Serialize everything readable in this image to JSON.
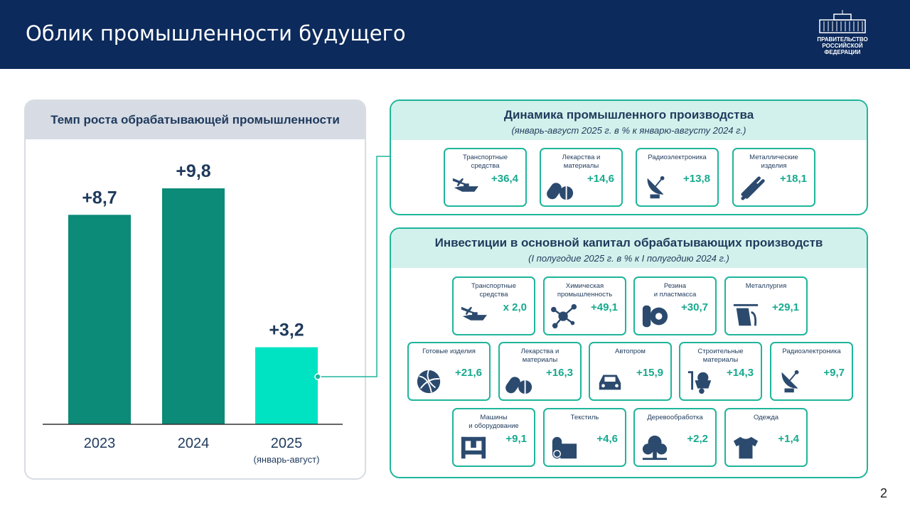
{
  "header": {
    "title": "Облик промышленности будущего",
    "logo_text": "ПРАВИТЕЛЬСТВО РОССИЙСКОЙ ФЕДЕРАЦИИ"
  },
  "left_panel": {
    "title": "Темп роста обрабатывающей промышленности"
  },
  "chart_data": {
    "type": "bar",
    "title": "Темп роста обрабатывающей промышленности",
    "categories": [
      "2023",
      "2024",
      "2025"
    ],
    "category_notes": [
      "",
      "",
      "(январь-август)"
    ],
    "values": [
      8.7,
      9.8,
      3.2
    ],
    "value_labels": [
      "+8,7",
      "+9,8",
      "+3,2"
    ],
    "colors": [
      "#0b8b78",
      "#0b8b78",
      "#00e3c3"
    ],
    "ylim": [
      0,
      10.5
    ]
  },
  "production": {
    "title": "Динамика промышленного производства",
    "subtitle": "(январь-август 2025 г. в % к январю-августу 2024 г.)",
    "items": [
      {
        "label": "Транспортные\nсредства",
        "value": "+36,4",
        "icon": "plane-ship-icon"
      },
      {
        "label": "Лекарства и\nматериалы",
        "value": "+14,6",
        "icon": "pills-icon"
      },
      {
        "label": "Радиоэлектроника",
        "value": "+13,8",
        "icon": "satellite-dish-icon"
      },
      {
        "label": "Металлические\nизделия",
        "value": "+18,1",
        "icon": "pipes-icon"
      }
    ]
  },
  "investment": {
    "title": "Инвестиции в основной капитал обрабатывающих производств",
    "subtitle": "(I полугодие 2025 г. в % к  I полугодию 2024 г.)",
    "items": [
      {
        "label": "Транспортные\nсредства",
        "value": "х 2,0",
        "icon": "plane-ship-icon"
      },
      {
        "label": "Химическая\nпромышленность",
        "value": "+49,1",
        "icon": "molecule-icon"
      },
      {
        "label": "Резина\nи пластмасса",
        "value": "+30,7",
        "icon": "tire-icon"
      },
      {
        "label": "Металлургия",
        "value": "+29,1",
        "icon": "ladle-icon"
      },
      {
        "label": "Готовые изделия",
        "value": "+21,6",
        "icon": "ball-icon"
      },
      {
        "label": "Лекарства и\nматериалы",
        "value": "+16,3",
        "icon": "pills-icon"
      },
      {
        "label": "Автопром",
        "value": "+15,9",
        "icon": "car-icon"
      },
      {
        "label": "Строительные\nматериалы",
        "value": "+14,3",
        "icon": "wheelbarrow-icon"
      },
      {
        "label": "Радиоэлектроника",
        "value": "+9,7",
        "icon": "satellite-dish-icon"
      },
      {
        "label": "Машины\nи оборудование",
        "value": "+9,1",
        "icon": "press-machine-icon"
      },
      {
        "label": "Текстиль",
        "value": "+4,6",
        "icon": "fabric-roll-icon"
      },
      {
        "label": "Деревообработка",
        "value": "+2,2",
        "icon": "tree-icon"
      },
      {
        "label": "Одежда",
        "value": "+1,4",
        "icon": "tshirt-icon"
      }
    ]
  },
  "page_number": "2",
  "colors": {
    "header": "#0c2a5b",
    "accent": "#1fb59b",
    "value": "#17a98e",
    "icon": "#2b4a6e"
  }
}
